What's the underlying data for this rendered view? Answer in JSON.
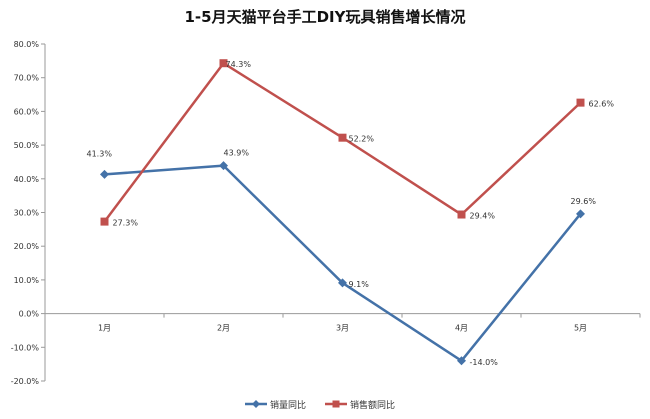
{
  "chart_data": {
    "type": "line",
    "title": "1-5月天猫平台手工DIY玩具销售增长情况",
    "categories": [
      "1月",
      "2月",
      "3月",
      "4月",
      "5月"
    ],
    "ylim": [
      -20,
      80
    ],
    "yticks": [
      "80.0%",
      "70.0%",
      "60.0%",
      "50.0%",
      "40.0%",
      "30.0%",
      "20.0%",
      "10.0%",
      "0.0%",
      "-10.0%",
      "-20.0%"
    ],
    "grid": false,
    "legend": "bottom",
    "series": [
      {
        "name": "销量同比",
        "color": "#4472a8",
        "marker": "diamond",
        "values": [
          41.3,
          43.9,
          9.1,
          -14.0,
          29.6
        ],
        "labels": [
          "41.3%",
          "43.9%",
          "9.1%",
          "-14.0%",
          "29.6%"
        ]
      },
      {
        "name": "销售额同比",
        "color": "#c0504d",
        "marker": "square",
        "values": [
          27.3,
          74.3,
          52.2,
          29.4,
          62.6
        ],
        "labels": [
          "27.3%",
          "74.3%",
          "52.2%",
          "29.4%",
          "62.6%"
        ]
      }
    ]
  }
}
